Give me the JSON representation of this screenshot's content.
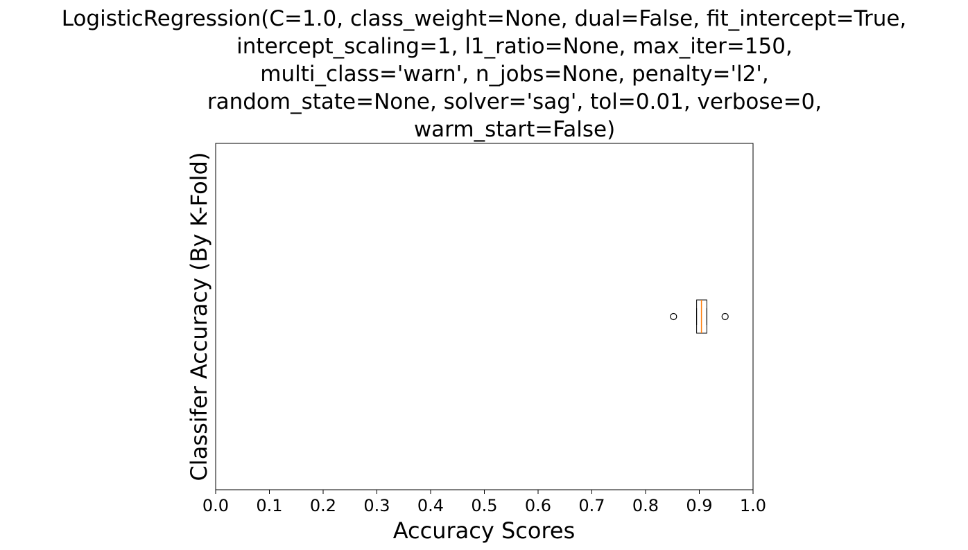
{
  "chart_data": {
    "type": "box",
    "orientation": "horizontal",
    "title_lines": [
      "LogisticRegression(C=1.0, class_weight=None, dual=False, fit_intercept=True,",
      "intercept_scaling=1, l1_ratio=None, max_iter=150,",
      "multi_class='warn', n_jobs=None, penalty='l2',",
      "random_state=None, solver='sag', tol=0.01, verbose=0,",
      "warm_start=False)"
    ],
    "xlabel": "Accuracy Scores",
    "ylabel": "Classifer Accuracy (By K-Fold)",
    "xlim": [
      0.0,
      1.0
    ],
    "xticks": [
      0.0,
      0.1,
      0.2,
      0.3,
      0.4,
      0.5,
      0.6,
      0.7,
      0.8,
      0.9,
      1.0
    ],
    "xtick_labels": [
      "0.0",
      "0.1",
      "0.2",
      "0.3",
      "0.4",
      "0.5",
      "0.6",
      "0.7",
      "0.8",
      "0.9",
      "1.0"
    ],
    "grid": false,
    "box": {
      "whisker_low": 0.895,
      "q1": 0.895,
      "median": 0.904,
      "q3": 0.914,
      "whisker_high": 0.914,
      "outliers": [
        0.852,
        0.948
      ]
    },
    "colors": {
      "box": "#000000",
      "median": "#ff7f0e",
      "outlier_edge": "#000000"
    }
  }
}
